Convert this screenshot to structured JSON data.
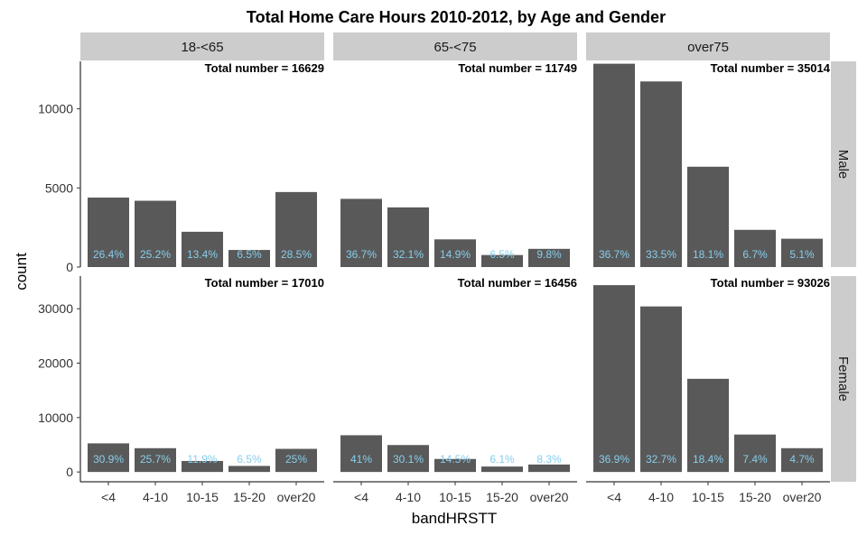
{
  "chart_data": {
    "type": "bar",
    "title": "Total Home Care Hours 2010-2012, by Age and Gender",
    "xlabel": "bandHRSTT",
    "ylabel": "count",
    "categories": [
      "<4",
      "4-10",
      "10-15",
      "15-20",
      "over20"
    ],
    "column_facets": [
      "18-<65",
      "65-<75",
      "over75"
    ],
    "row_facets": [
      "Male",
      "Female"
    ],
    "grid": false,
    "rows": [
      {
        "name": "Male",
        "ylim": [
          0,
          13000
        ],
        "yticks": [
          0,
          5000,
          10000
        ],
        "yticklabels": [
          "0",
          "5000",
          "10000"
        ],
        "panels": [
          {
            "column": "18-<65",
            "total_label": "Total number = 16629",
            "values": [
              4390,
              4190,
              2230,
              1080,
              4740
            ],
            "labels": [
              "26.4%",
              "25.2%",
              "13.4%",
              "6.5%",
              "28.5%"
            ]
          },
          {
            "column": "65-<75",
            "total_label": "Total number = 11749",
            "values": [
              4310,
              3770,
              1750,
              760,
              1150
            ],
            "labels": [
              "36.7%",
              "32.1%",
              "14.9%",
              "6.5%",
              "9.8%"
            ]
          },
          {
            "column": "over75",
            "total_label": "Total number = 35014",
            "values": [
              12850,
              11730,
              6340,
              2350,
              1790
            ],
            "labels": [
              "36.7%",
              "33.5%",
              "18.1%",
              "6.7%",
              "5.1%"
            ]
          }
        ]
      },
      {
        "name": "Female",
        "ylim": [
          -1800,
          36000
        ],
        "yticks": [
          0,
          10000,
          20000,
          30000
        ],
        "yticklabels": [
          "0",
          "10000",
          "20000",
          "30000"
        ],
        "panels": [
          {
            "column": "18-<65",
            "total_label": "Total number = 17010",
            "values": [
              5260,
              4370,
              2020,
              1110,
              4250
            ],
            "labels": [
              "30.9%",
              "25.7%",
              "11.9%",
              "6.5%",
              "25%"
            ]
          },
          {
            "column": "65-<75",
            "total_label": "Total number = 16456",
            "values": [
              6750,
              4950,
              2390,
              1000,
              1370
            ],
            "labels": [
              "41%",
              "30.1%",
              "14.5%",
              "6.1%",
              "8.3%"
            ]
          },
          {
            "column": "over75",
            "total_label": "Total number = 93026",
            "values": [
              34330,
              30420,
              17120,
              6880,
              4370
            ],
            "labels": [
              "36.9%",
              "32.7%",
              "18.4%",
              "7.4%",
              "4.7%"
            ]
          }
        ]
      }
    ],
    "colors": {
      "bar": "#595959",
      "label": "#87ceeb",
      "strip": "#cccccc"
    }
  }
}
